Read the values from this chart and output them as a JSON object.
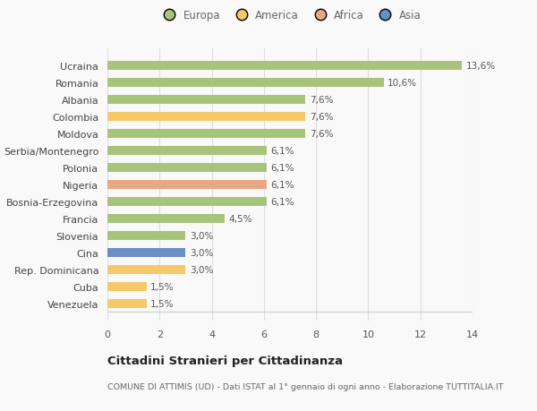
{
  "countries": [
    "Ucraina",
    "Romania",
    "Albania",
    "Colombia",
    "Moldova",
    "Serbia/Montenegro",
    "Polonia",
    "Nigeria",
    "Bosnia-Erzegovina",
    "Francia",
    "Slovenia",
    "Cina",
    "Rep. Dominicana",
    "Cuba",
    "Venezuela"
  ],
  "values": [
    13.6,
    10.6,
    7.6,
    7.6,
    7.6,
    6.1,
    6.1,
    6.1,
    6.1,
    4.5,
    3.0,
    3.0,
    3.0,
    1.5,
    1.5
  ],
  "labels": [
    "13,6%",
    "10,6%",
    "7,6%",
    "7,6%",
    "7,6%",
    "6,1%",
    "6,1%",
    "6,1%",
    "6,1%",
    "4,5%",
    "3,0%",
    "3,0%",
    "3,0%",
    "1,5%",
    "1,5%"
  ],
  "colors": [
    "#a8c47a",
    "#a8c47a",
    "#a8c47a",
    "#f5c96a",
    "#a8c47a",
    "#a8c47a",
    "#a8c47a",
    "#e8a882",
    "#a8c47a",
    "#a8c47a",
    "#a8c47a",
    "#6b8ec4",
    "#f5c96a",
    "#f5c96a",
    "#f5c96a"
  ],
  "legend": {
    "Europa": "#a8c47a",
    "America": "#f5c96a",
    "Africa": "#e8a882",
    "Asia": "#6b8ec4"
  },
  "title": "Cittadini Stranieri per Cittadinanza",
  "subtitle": "COMUNE DI ATTIMIS (UD) - Dati ISTAT al 1° gennaio di ogni anno - Elaborazione TUTTITALIA.IT",
  "xlim": [
    0,
    14
  ],
  "xticks": [
    0,
    2,
    4,
    6,
    8,
    10,
    12,
    14
  ],
  "background_color": "#f9f9f9",
  "grid_color": "#dddddd",
  "bar_height": 0.55
}
